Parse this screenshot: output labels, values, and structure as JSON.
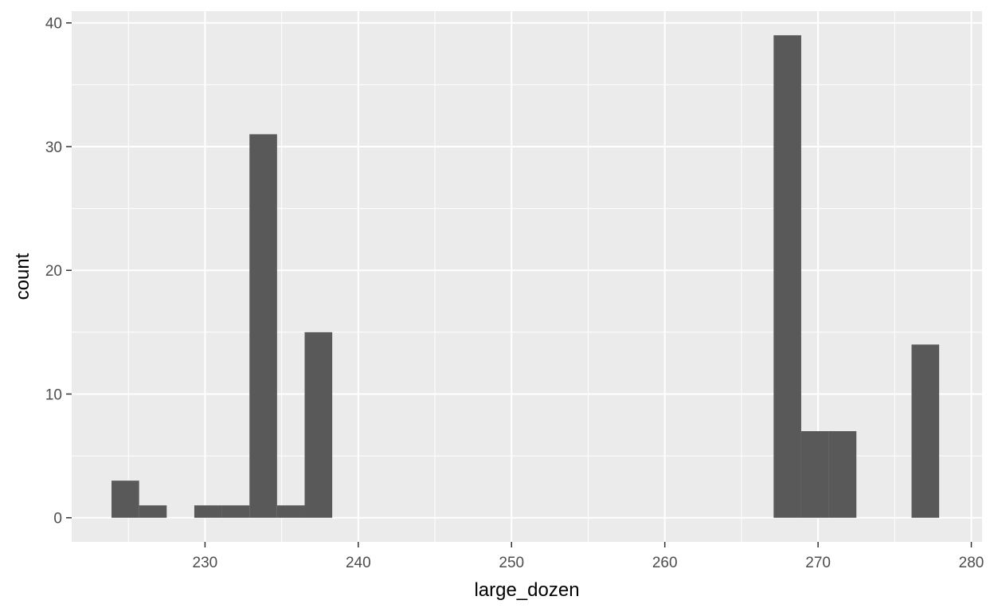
{
  "chart_data": {
    "type": "bar",
    "subtype": "histogram",
    "xlabel": "large_dozen",
    "ylabel": "count",
    "xlim": [
      221.3,
      280.7
    ],
    "ylim": [
      -1.95,
      40.95
    ],
    "x_ticks": [
      230,
      240,
      250,
      260,
      270,
      280
    ],
    "y_ticks": [
      0,
      10,
      20,
      30,
      40
    ],
    "bin_width": 1.8,
    "bins": [
      {
        "x_start": 223.9,
        "x_end": 225.7,
        "count": 3
      },
      {
        "x_start": 225.7,
        "x_end": 227.5,
        "count": 1
      },
      {
        "x_start": 227.5,
        "x_end": 229.3,
        "count": 0
      },
      {
        "x_start": 229.3,
        "x_end": 231.1,
        "count": 1
      },
      {
        "x_start": 231.1,
        "x_end": 232.9,
        "count": 1
      },
      {
        "x_start": 232.9,
        "x_end": 234.7,
        "count": 31
      },
      {
        "x_start": 234.7,
        "x_end": 236.5,
        "count": 1
      },
      {
        "x_start": 236.5,
        "x_end": 238.3,
        "count": 15
      },
      {
        "x_start": 267.1,
        "x_end": 268.9,
        "count": 39
      },
      {
        "x_start": 268.9,
        "x_end": 270.7,
        "count": 7
      },
      {
        "x_start": 270.7,
        "x_end": 272.5,
        "count": 7
      },
      {
        "x_start": 276.1,
        "x_end": 277.9,
        "count": 14
      }
    ],
    "panel_background": "#ebebeb",
    "grid_color": "#ffffff",
    "bar_color": "#595959",
    "grid": true
  }
}
